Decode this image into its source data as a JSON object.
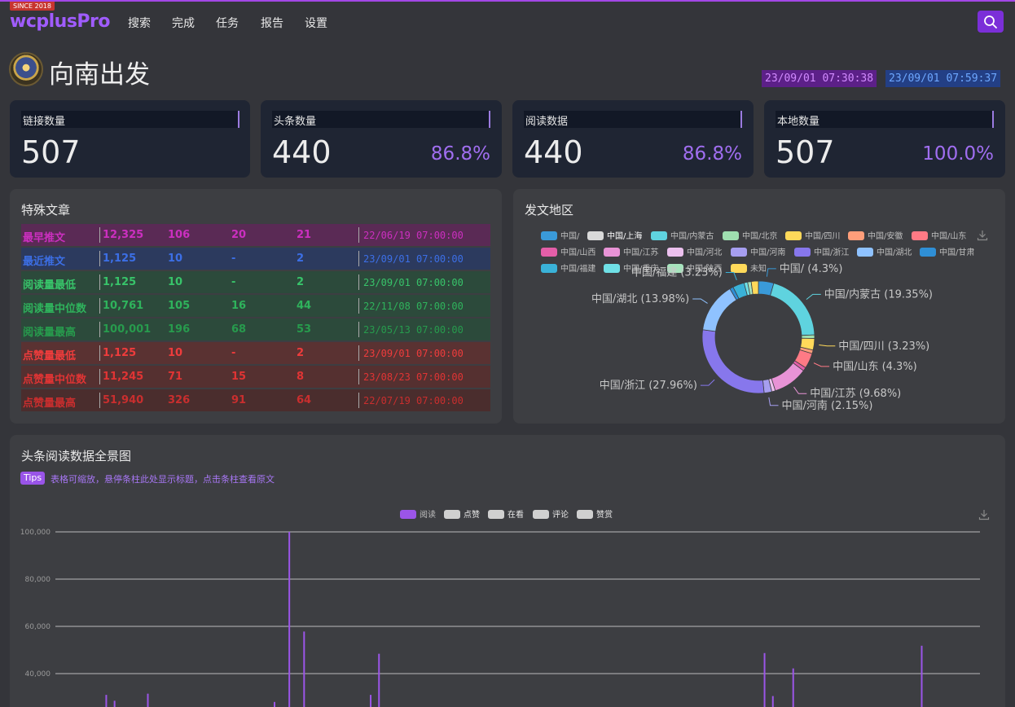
{
  "navbar": {
    "since_badge": "SINCE 2018",
    "brand": "wcplusPro",
    "links": [
      "搜索",
      "完成",
      "任务",
      "报告",
      "设置"
    ]
  },
  "account": {
    "name": "向南出发",
    "start_time": "23/09/01 07:30:38",
    "end_time": "23/09/01 07:59:37"
  },
  "stats": [
    {
      "label": "链接数量",
      "value": "507",
      "pct": ""
    },
    {
      "label": "头条数量",
      "value": "440",
      "pct": "86.8%"
    },
    {
      "label": "阅读数据",
      "value": "440",
      "pct": "86.8%"
    },
    {
      "label": "本地数量",
      "value": "507",
      "pct": "100.0%"
    }
  ],
  "special": {
    "title": "特殊文章",
    "rows": [
      {
        "label": "最早推文",
        "read": "12,325",
        "like": "106",
        "look": "20",
        "comment": "21",
        "date": "22/06/19 07:00:00",
        "bg": "#5a2a55",
        "fg": "#cc2fc0"
      },
      {
        "label": "最近推文",
        "read": "1,125",
        "like": "10",
        "look": "-",
        "comment": "2",
        "date": "23/09/01 07:00:00",
        "bg": "#2c3a5e",
        "fg": "#3c6fe6"
      },
      {
        "label": "阅读量最低",
        "read": "1,125",
        "like": "10",
        "look": "-",
        "comment": "2",
        "date": "23/09/01 07:00:00",
        "bg": "#2c4a3b",
        "fg": "#38c46a"
      },
      {
        "label": "阅读量中位数",
        "read": "10,761",
        "like": "105",
        "look": "16",
        "comment": "44",
        "date": "22/11/08 07:00:00",
        "bg": "#2c4a3b",
        "fg": "#2fb35c"
      },
      {
        "label": "阅读量最高",
        "read": "100,001",
        "like": "196",
        "look": "68",
        "comment": "53",
        "date": "23/05/13 07:00:00",
        "bg": "#2c4a3b",
        "fg": "#279b4d"
      },
      {
        "label": "点赞量最低",
        "read": "1,125",
        "like": "10",
        "look": "-",
        "comment": "2",
        "date": "23/09/01 07:00:00",
        "bg": "#5a3232",
        "fg": "#ef3c3c"
      },
      {
        "label": "点赞量中位数",
        "read": "11,245",
        "like": "71",
        "look": "15",
        "comment": "8",
        "date": "23/08/23 07:00:00",
        "bg": "#553030",
        "fg": "#e03434"
      },
      {
        "label": "点赞量最高",
        "read": "51,940",
        "like": "326",
        "look": "91",
        "comment": "64",
        "date": "22/07/19 07:00:00",
        "bg": "#4a2d2d",
        "fg": "#c92e2e"
      }
    ]
  },
  "region": {
    "title": "发文地区",
    "download_icon": "download-icon",
    "chart_data": {
      "type": "pie",
      "legend": [
        {
          "name": "中国/",
          "color": "#3a9ad9"
        },
        {
          "name": "中国/上海",
          "color": "#d9d9d9"
        },
        {
          "name": "中国/内蒙古",
          "color": "#5fd3df"
        },
        {
          "name": "中国/北京",
          "color": "#9fdfb0"
        },
        {
          "name": "中国/四川",
          "color": "#ffd95a"
        },
        {
          "name": "中国/安徽",
          "color": "#ff9e7a"
        },
        {
          "name": "中国/山东",
          "color": "#ff7a85"
        },
        {
          "name": "中国/山西",
          "color": "#e45ea8"
        },
        {
          "name": "中国/江苏",
          "color": "#e893d6"
        },
        {
          "name": "中国/河北",
          "color": "#ecc0ee"
        },
        {
          "name": "中国/河南",
          "color": "#a69ef0"
        },
        {
          "name": "中国/浙江",
          "color": "#8777ec"
        },
        {
          "name": "中国/湖北",
          "color": "#8fc2ff"
        },
        {
          "name": "中国/甘肃",
          "color": "#2f8fd6"
        },
        {
          "name": "中国/福建",
          "color": "#3ab2d8"
        },
        {
          "name": "中国/重庆",
          "color": "#6fe0e6"
        },
        {
          "name": "中国/陕西",
          "color": "#a7e3bd"
        },
        {
          "name": "未知",
          "color": "#ffd95a"
        }
      ],
      "slices": [
        {
          "name": "中国/",
          "value": 4.3,
          "label": "中国/ (4.3%)",
          "color": "#3a9ad9"
        },
        {
          "name": "中国/内蒙古",
          "value": 19.35,
          "label": "中国/内蒙古 (19.35%)",
          "color": "#5fd3df"
        },
        {
          "name": "中国/北京",
          "value": 1.0,
          "label": "",
          "color": "#9fdfb0"
        },
        {
          "name": "中国/四川",
          "value": 3.23,
          "label": "中国/四川 (3.23%)",
          "color": "#ffd95a"
        },
        {
          "name": "中国/安徽",
          "value": 1.0,
          "label": "",
          "color": "#ff9e7a"
        },
        {
          "name": "中国/山东",
          "value": 4.3,
          "label": "中国/山东 (4.3%)",
          "color": "#ff7a85"
        },
        {
          "name": "中国/山西",
          "value": 1.0,
          "label": "",
          "color": "#e45ea8"
        },
        {
          "name": "中国/江苏",
          "value": 9.68,
          "label": "中国/江苏 (9.68%)",
          "color": "#e893d6"
        },
        {
          "name": "中国/河北",
          "value": 1.0,
          "label": "",
          "color": "#ecc0ee"
        },
        {
          "name": "中国/河南",
          "value": 2.15,
          "label": "中国/河南 (2.15%)",
          "color": "#a69ef0"
        },
        {
          "name": "中国/浙江",
          "value": 27.96,
          "label": "中国/浙江 (27.96%)",
          "color": "#8777ec"
        },
        {
          "name": "中国/湖北",
          "value": 13.98,
          "label": "中国/湖北 (13.98%)",
          "color": "#8fc2ff"
        },
        {
          "name": "中国/甘肃",
          "value": 1.0,
          "label": "",
          "color": "#2f8fd6"
        },
        {
          "name": "中国/福建",
          "value": 3.23,
          "label": "中国/福建 (3.23%)",
          "color": "#3ab2d8"
        },
        {
          "name": "中国/重庆",
          "value": 1.0,
          "label": "",
          "color": "#6fe0e6"
        },
        {
          "name": "中国/陕西",
          "value": 1.0,
          "label": "",
          "color": "#a7e3bd"
        },
        {
          "name": "未知",
          "value": 2.0,
          "label": "",
          "color": "#ffd95a"
        }
      ]
    }
  },
  "overview": {
    "title": "头条阅读数据全景图",
    "tips_badge": "Tips",
    "tips_text": "表格可缩放，悬停条柱此处显示标题，点击条柱查看原文",
    "download_icon": "download-icon",
    "chart_data": {
      "type": "bar",
      "series": [
        {
          "name": "阅读",
          "color": "#9b55e8"
        },
        {
          "name": "点赞",
          "color": "#d0d0d0"
        },
        {
          "name": "在看",
          "color": "#d0d0d0"
        },
        {
          "name": "评论",
          "color": "#d0d0d0"
        },
        {
          "name": "赞赏",
          "color": "#d0d0d0"
        }
      ],
      "y_ticks": [
        "100,000",
        "80,000",
        "60,000",
        "40,000"
      ],
      "ylim": [
        0,
        100000
      ],
      "visible_ymin": 26000,
      "read_values": [
        {
          "x": 0.055,
          "y": 31000
        },
        {
          "x": 0.064,
          "y": 28500
        },
        {
          "x": 0.1,
          "y": 31500
        },
        {
          "x": 0.237,
          "y": 28000
        },
        {
          "x": 0.253,
          "y": 100001
        },
        {
          "x": 0.269,
          "y": 57800
        },
        {
          "x": 0.341,
          "y": 31000
        },
        {
          "x": 0.35,
          "y": 48400
        },
        {
          "x": 0.767,
          "y": 48700
        },
        {
          "x": 0.776,
          "y": 30500
        },
        {
          "x": 0.798,
          "y": 42200
        },
        {
          "x": 0.937,
          "y": 51800
        }
      ]
    }
  }
}
